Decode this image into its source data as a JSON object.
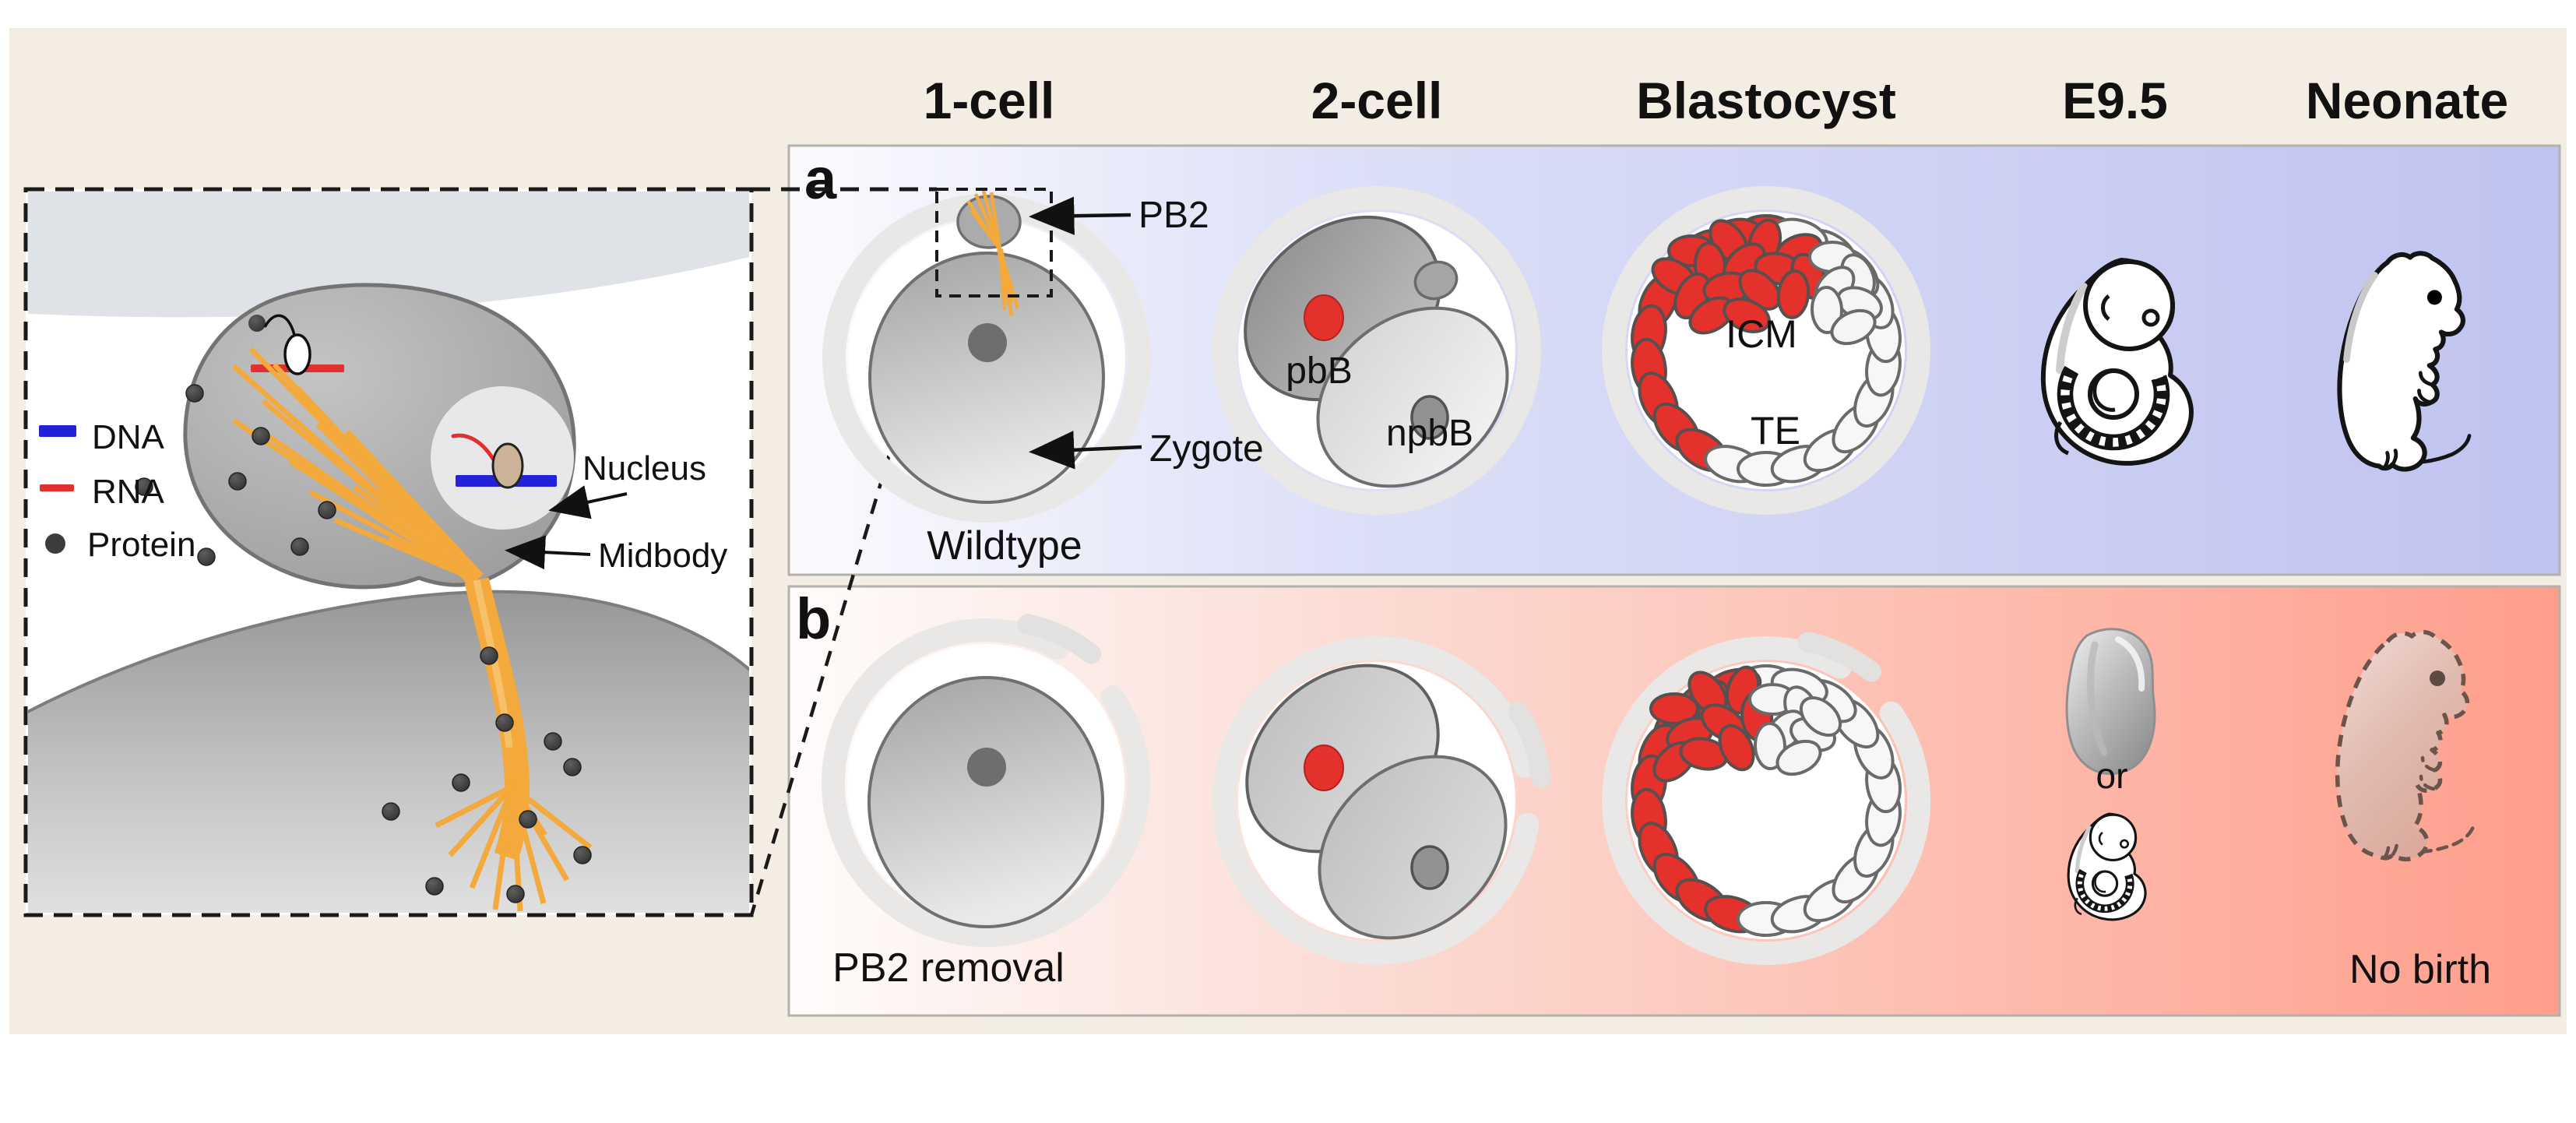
{
  "columns": [
    {
      "label": "1-cell"
    },
    {
      "label": "2-cell"
    },
    {
      "label": "Blastocyst"
    },
    {
      "label": "E9.5"
    },
    {
      "label": "Neonate"
    }
  ],
  "row_a": {
    "panel_letter": "a",
    "condition_label": "Wildtype",
    "labels": {
      "pb2": "PB2",
      "zygote": "Zygote",
      "pbb": "pbB",
      "npbb": "npbB",
      "icm": "ICM",
      "te": "TE"
    }
  },
  "row_b": {
    "panel_letter": "b",
    "condition_label": "PB2 removal",
    "or_label": "or",
    "outcome_label": "No birth"
  },
  "inset": {
    "labels": {
      "nucleus": "Nucleus",
      "midbody": "Midbody"
    },
    "legend": [
      {
        "id": "dna",
        "label": "DNA",
        "color": "#2222d8"
      },
      {
        "id": "rna",
        "label": "RNA",
        "color": "#e03030"
      },
      {
        "id": "protein",
        "label": "Protein",
        "color": "#3c3c3c"
      }
    ]
  },
  "colors": {
    "canvas_beige": "#f4ede3",
    "panel_a_left": "#fbfbfe",
    "panel_a_mid": "#dcdff7",
    "panel_a_right": "#bfc3f0",
    "panel_b_left": "#fefcfb",
    "panel_b_mid": "#fbd9d1",
    "panel_b_right": "#ff9e8b",
    "red_cell": "#e4312c",
    "orange_midbody": "#f3a93c",
    "dna_blue": "#2222d8",
    "rna_red": "#e03030",
    "zona_gray": "#e9e8e6",
    "cell_gray": "#a9a9a9",
    "outline_dark": "#141414",
    "pup_pink": "#dfb3a7",
    "dash_brown": "#6b544c"
  }
}
